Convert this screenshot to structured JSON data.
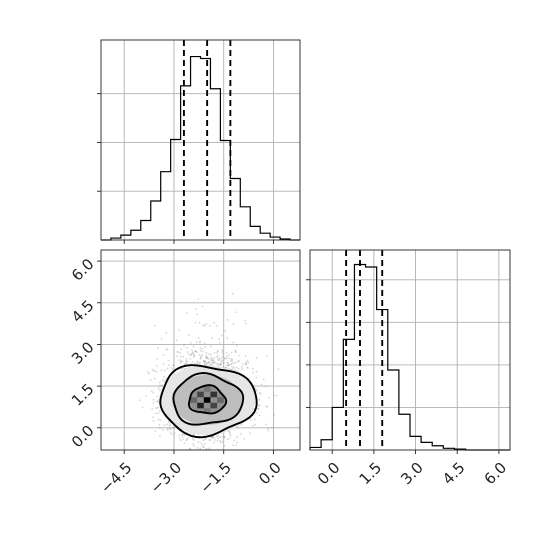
{
  "chart_data": [
    {
      "type": "histogram",
      "panel": "top-left",
      "parameter": "x",
      "xlim": [
        -5.2,
        0.8
      ],
      "x_ticks": [
        -4.5,
        -3.0,
        -1.5,
        0.0
      ],
      "bin_edges": [
        -5.2,
        -4.9,
        -4.6,
        -4.3,
        -4.0,
        -3.7,
        -3.4,
        -3.1,
        -2.8,
        -2.5,
        -2.2,
        -1.9,
        -1.6,
        -1.3,
        -1.0,
        -0.7,
        -0.4,
        -0.1,
        0.2,
        0.5,
        0.8
      ],
      "counts": [
        0,
        2,
        5,
        10,
        20,
        40,
        70,
        103,
        158,
        188,
        186,
        155,
        102,
        63,
        34,
        14,
        7,
        3,
        1,
        0
      ],
      "ylim": [
        0,
        205
      ],
      "quantiles": [
        -2.7,
        -2.0,
        -1.3
      ],
      "grid": true
    },
    {
      "type": "scatter",
      "panel": "bottom-left",
      "x_parameter": "x",
      "y_parameter": "y",
      "xlim": [
        -5.2,
        0.8
      ],
      "ylim": [
        -0.8,
        6.4
      ],
      "x_ticks": [
        -4.5,
        -3.0,
        -1.5,
        0.0
      ],
      "y_ticks": [
        0.0,
        1.5,
        3.0,
        4.5,
        6.0
      ],
      "x_tick_labels": [
        "−4.5",
        "−3.0",
        "−1.5",
        "0.0"
      ],
      "y_tick_labels": [
        "0.0",
        "1.5",
        "3.0",
        "4.5",
        "6.0"
      ],
      "center": [
        -2.0,
        1.0
      ],
      "contour_levels": [
        {
          "level": "inner",
          "rx": 0.55,
          "ry": 0.5
        },
        {
          "level": "middle",
          "rx": 1.05,
          "ry": 0.9
        },
        {
          "level": "outer",
          "rx": 1.45,
          "ry": 1.25
        }
      ],
      "density_cells": [
        {
          "x": -2.0,
          "y": 1.0,
          "shade": "#000000"
        },
        {
          "x": -2.2,
          "y": 0.8,
          "shade": "#222222"
        },
        {
          "x": -1.8,
          "y": 1.2,
          "shade": "#333333"
        },
        {
          "x": -2.2,
          "y": 1.2,
          "shade": "#444444"
        },
        {
          "x": -1.8,
          "y": 0.8,
          "shade": "#444444"
        },
        {
          "x": -2.4,
          "y": 1.0,
          "shade": "#666666"
        },
        {
          "x": -1.6,
          "y": 1.0,
          "shade": "#666666"
        },
        {
          "x": -2.0,
          "y": 1.4,
          "shade": "#777777"
        },
        {
          "x": -2.0,
          "y": 0.6,
          "shade": "#777777"
        }
      ],
      "grid": true
    },
    {
      "type": "histogram",
      "panel": "bottom-right",
      "parameter": "y",
      "xlim": [
        -0.8,
        6.4
      ],
      "x_ticks": [
        0.0,
        1.5,
        3.0,
        4.5,
        6.0
      ],
      "x_tick_labels": [
        "0.0",
        "1.5",
        "3.0",
        "4.5",
        "6.0"
      ],
      "bin_edges": [
        -0.8,
        -0.4,
        0.0,
        0.4,
        0.8,
        1.2,
        1.6,
        2.0,
        2.4,
        2.8,
        3.2,
        3.6,
        4.0,
        4.4,
        4.8,
        5.2,
        5.6,
        6.0,
        6.4
      ],
      "counts": [
        3,
        12,
        50,
        130,
        218,
        215,
        165,
        94,
        42,
        16,
        9,
        5,
        2,
        1,
        0,
        0,
        0,
        0
      ],
      "ylim": [
        0,
        235
      ],
      "quantiles": [
        0.5,
        1.0,
        1.8
      ],
      "grid": true
    }
  ]
}
